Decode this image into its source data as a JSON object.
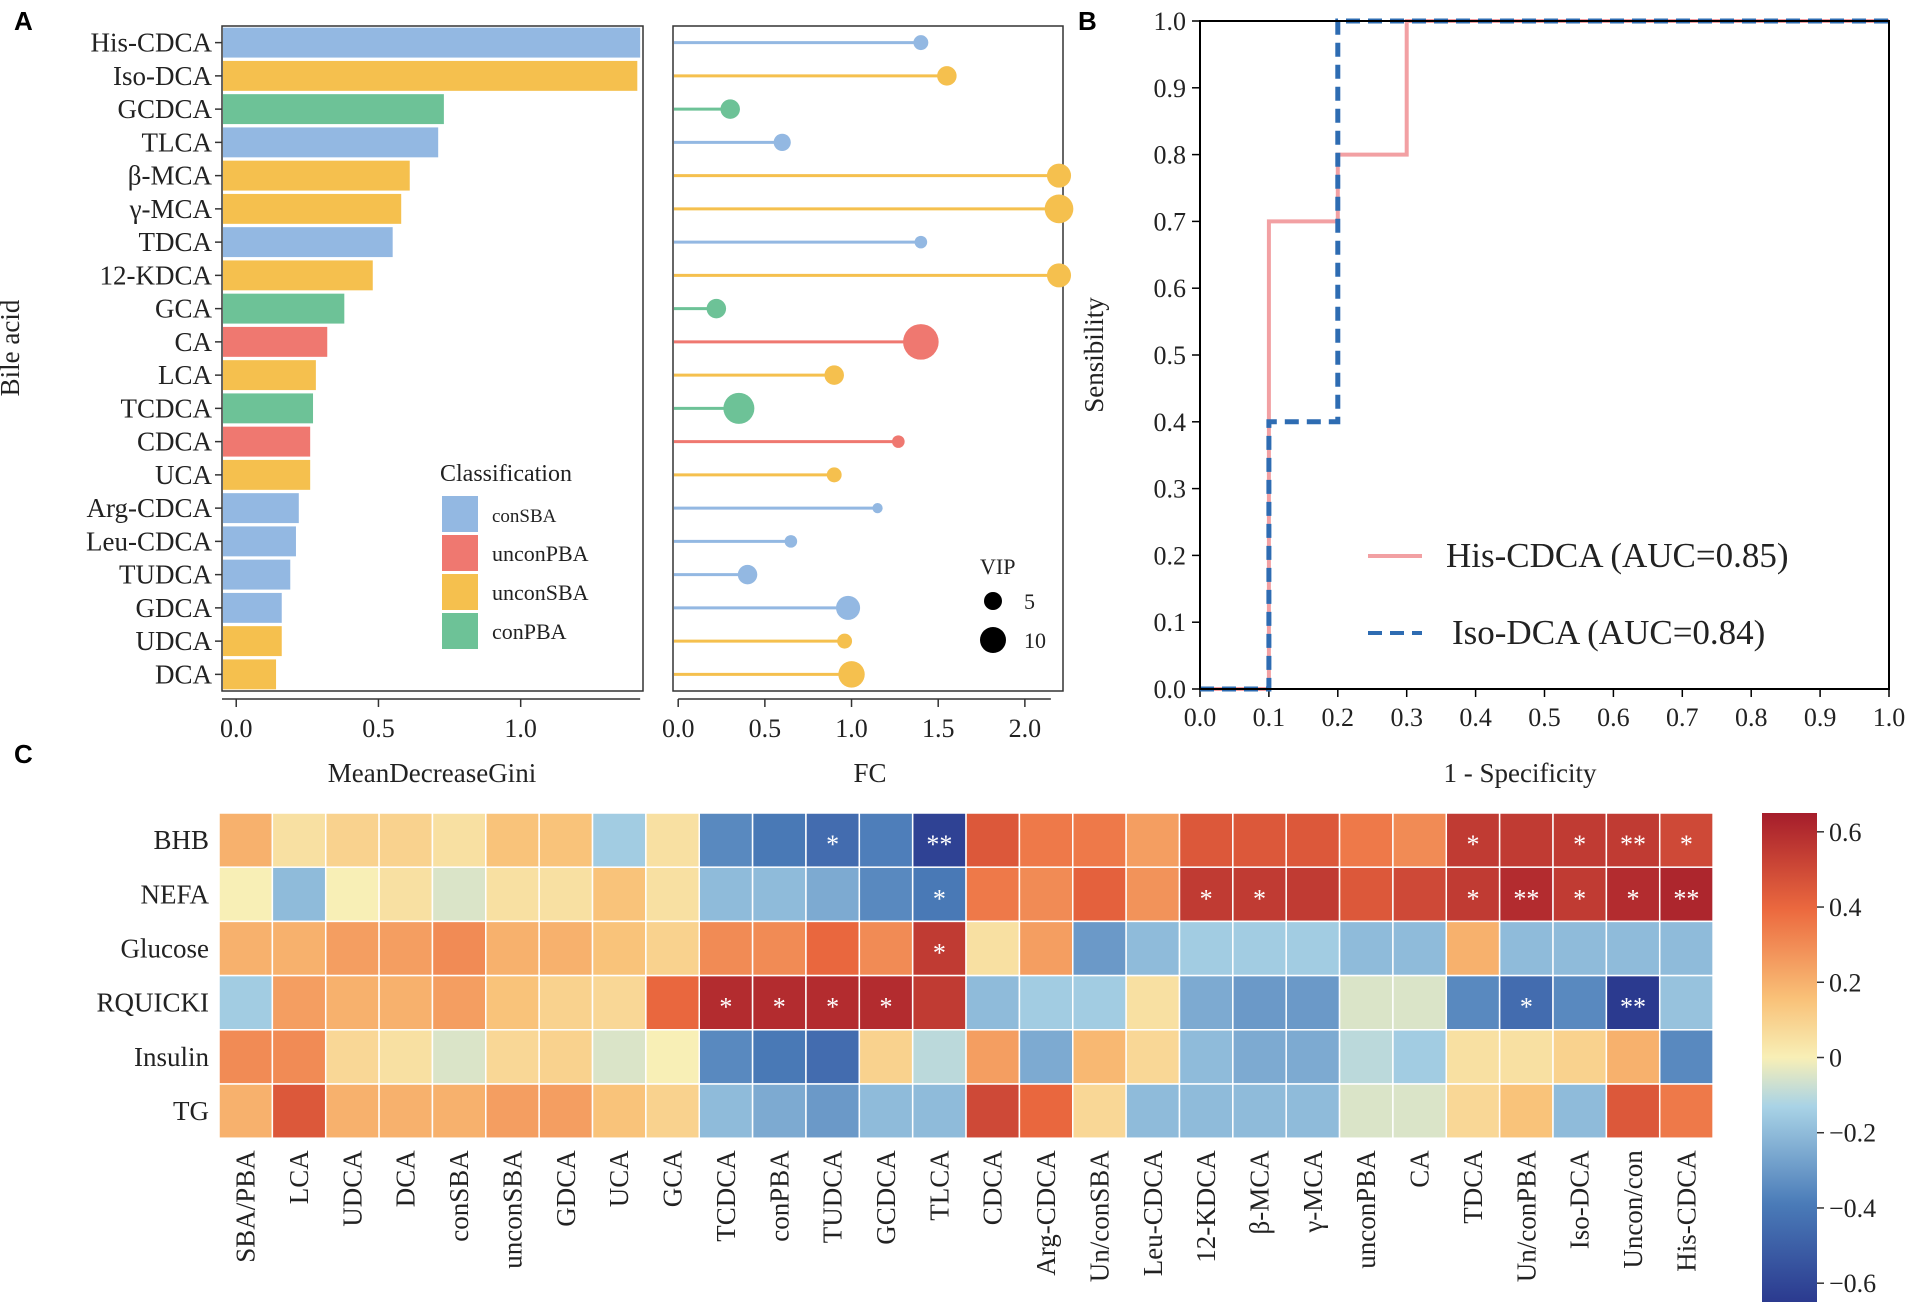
{
  "panel_labels": {
    "a": "A",
    "b": "B",
    "c": "C"
  },
  "colors": {
    "conSBA": "#93b8e2",
    "unconPBA": "#ef7870",
    "unconSBA": "#f5c04e",
    "conPBA": "#6dc297",
    "roc_his": "#f2a0a3",
    "roc_iso": "#2e6cb2"
  },
  "chart_data": [
    {
      "id": "gini",
      "type": "bar",
      "orientation": "horizontal",
      "ylabel": "Bile acid",
      "xlabel": "MeanDecreaseGini",
      "xlim": [
        -0.05,
        1.43
      ],
      "xticks": [
        "0.0",
        "0.5",
        "1.0"
      ],
      "xtick_values": [
        0,
        0.5,
        1.0
      ],
      "categories": [
        "His-CDCA",
        "Iso-DCA",
        "GCDCA",
        "TLCA",
        "β-MCA",
        "γ-MCA",
        "TDCA",
        "12-KDCA",
        "GCA",
        "CA",
        "LCA",
        "TCDCA",
        "CDCA",
        "UCA",
        "Arg-CDCA",
        "Leu-CDCA",
        "TUDCA",
        "GDCA",
        "UDCA",
        "DCA"
      ],
      "values": [
        1.42,
        1.41,
        0.73,
        0.71,
        0.61,
        0.58,
        0.55,
        0.48,
        0.38,
        0.32,
        0.28,
        0.27,
        0.26,
        0.26,
        0.22,
        0.21,
        0.19,
        0.16,
        0.16,
        0.14
      ],
      "classes": [
        "conSBA",
        "unconSBA",
        "conPBA",
        "conSBA",
        "unconSBA",
        "unconSBA",
        "conSBA",
        "unconSBA",
        "conPBA",
        "unconPBA",
        "unconSBA",
        "conPBA",
        "unconPBA",
        "unconSBA",
        "conSBA",
        "conSBA",
        "conSBA",
        "conSBA",
        "unconSBA",
        "unconSBA"
      ],
      "legend": {
        "title": "Classification",
        "items": [
          "conSBA",
          "unconPBA",
          "unconSBA",
          "conPBA"
        ]
      }
    },
    {
      "id": "fc",
      "type": "lollipop",
      "xlabel": "FC",
      "xlim": [
        -0.03,
        2.22
      ],
      "xticks": [
        "0.0",
        "0.5",
        "1.0",
        "1.5",
        "2.0"
      ],
      "xtick_values": [
        0,
        0.5,
        1.0,
        1.5,
        2.0
      ],
      "values": [
        1.4,
        1.55,
        0.3,
        0.6,
        2.22,
        2.2,
        1.4,
        2.22,
        0.22,
        1.4,
        0.9,
        0.35,
        1.27,
        0.9,
        1.15,
        0.65,
        0.4,
        0.98,
        0.96,
        1.0
      ],
      "vip": [
        3,
        5,
        5,
        4,
        7,
        9,
        2,
        7,
        5,
        12,
        5,
        10,
        2,
        3,
        1,
        2,
        5,
        7,
        3,
        8
      ],
      "size_legend": {
        "title": "VIP",
        "labels": [
          "5",
          "10"
        ],
        "values": [
          5,
          10
        ]
      }
    },
    {
      "id": "roc",
      "type": "line",
      "xlabel": "1 - Specificity",
      "ylabel": "Sensibility",
      "xlim": [
        0,
        1
      ],
      "ylim": [
        0,
        1
      ],
      "ticks": [
        "0.0",
        "0.1",
        "0.2",
        "0.3",
        "0.4",
        "0.5",
        "0.6",
        "0.7",
        "0.8",
        "0.9",
        "1.0"
      ],
      "tick_values": [
        0,
        0.1,
        0.2,
        0.3,
        0.4,
        0.5,
        0.6,
        0.7,
        0.8,
        0.9,
        1.0
      ],
      "series": [
        {
          "name": "His-CDCA (AUC=0.85)",
          "style": "solid",
          "x": [
            0,
            0.1,
            0.1,
            0.2,
            0.2,
            0.3,
            0.3,
            1.0
          ],
          "y": [
            0,
            0,
            0.7,
            0.7,
            0.8,
            0.8,
            1.0,
            1.0
          ]
        },
        {
          "name": "Iso-DCA (AUC=0.84)",
          "style": "dashed",
          "x": [
            0,
            0.1,
            0.1,
            0.2,
            0.2,
            1.0
          ],
          "y": [
            0,
            0,
            0.4,
            0.4,
            1.0,
            1.0
          ]
        }
      ]
    },
    {
      "id": "heatmap",
      "type": "heatmap",
      "rows": [
        "BHB",
        "NEFA",
        "Glucose",
        "RQUICKI",
        "Insulin",
        "TG"
      ],
      "cols": [
        "SBA/PBA",
        "LCA",
        "UDCA",
        "DCA",
        "conSBA",
        "unconSBA",
        "GDCA",
        "UCA",
        "GCA",
        "TCDCA",
        "conPBA",
        "TUDCA",
        "GCDCA",
        "TLCA",
        "CDCA",
        "Arg-CDCA",
        "Un/conSBA",
        "Leu-CDCA",
        "12-KDCA",
        "β-MCA",
        "γ-MCA",
        "unconPBA",
        "CA",
        "TDCA",
        "Un/conPBA",
        "Iso-DCA",
        "Uncon/con",
        "His-CDCA"
      ],
      "values": [
        [
          0.2,
          0.05,
          0.1,
          0.1,
          0.05,
          0.15,
          0.15,
          -0.15,
          0.05,
          -0.35,
          -0.4,
          -0.45,
          -0.38,
          -0.62,
          0.45,
          0.35,
          0.35,
          0.25,
          0.45,
          0.45,
          0.45,
          0.35,
          0.3,
          0.55,
          0.55,
          0.55,
          0.55,
          0.5
        ],
        [
          0.0,
          -0.2,
          0.0,
          0.05,
          -0.05,
          0.05,
          0.05,
          0.15,
          0.05,
          -0.2,
          -0.2,
          -0.25,
          -0.35,
          -0.4,
          0.35,
          0.3,
          0.42,
          0.28,
          0.55,
          0.55,
          0.55,
          0.45,
          0.5,
          0.55,
          0.6,
          0.55,
          0.6,
          0.62
        ],
        [
          0.2,
          0.2,
          0.25,
          0.25,
          0.3,
          0.2,
          0.2,
          0.15,
          0.1,
          0.3,
          0.3,
          0.4,
          0.3,
          0.55,
          0.05,
          0.25,
          -0.3,
          -0.2,
          -0.15,
          -0.15,
          -0.15,
          -0.2,
          -0.2,
          0.2,
          -0.2,
          -0.2,
          -0.2,
          -0.2
        ],
        [
          -0.15,
          0.25,
          0.2,
          0.2,
          0.25,
          0.15,
          0.1,
          0.08,
          0.4,
          0.6,
          0.6,
          0.6,
          0.6,
          0.55,
          -0.2,
          -0.15,
          -0.15,
          0.05,
          -0.25,
          -0.3,
          -0.3,
          -0.05,
          -0.05,
          -0.35,
          -0.45,
          -0.35,
          -0.65,
          -0.18
        ],
        [
          0.3,
          0.3,
          0.08,
          0.05,
          -0.05,
          0.08,
          0.1,
          -0.05,
          0.0,
          -0.35,
          -0.4,
          -0.45,
          0.1,
          -0.1,
          0.25,
          -0.25,
          0.18,
          0.08,
          -0.2,
          -0.25,
          -0.25,
          -0.1,
          -0.15,
          0.05,
          0.05,
          0.1,
          0.2,
          -0.35
        ],
        [
          0.2,
          0.45,
          0.2,
          0.2,
          0.2,
          0.25,
          0.25,
          0.15,
          0.1,
          -0.2,
          -0.25,
          -0.3,
          -0.2,
          -0.2,
          0.5,
          0.4,
          0.08,
          -0.2,
          -0.2,
          -0.2,
          -0.2,
          -0.05,
          -0.05,
          0.08,
          0.15,
          -0.2,
          0.45,
          0.35
        ]
      ],
      "annotations": [
        {
          "row": 0,
          "col": 11,
          "text": "*"
        },
        {
          "row": 0,
          "col": 13,
          "text": "**"
        },
        {
          "row": 0,
          "col": 23,
          "text": "*"
        },
        {
          "row": 0,
          "col": 25,
          "text": "*"
        },
        {
          "row": 0,
          "col": 26,
          "text": "**"
        },
        {
          "row": 0,
          "col": 27,
          "text": "*"
        },
        {
          "row": 1,
          "col": 13,
          "text": "*"
        },
        {
          "row": 1,
          "col": 18,
          "text": "*"
        },
        {
          "row": 1,
          "col": 19,
          "text": "*"
        },
        {
          "row": 1,
          "col": 23,
          "text": "*"
        },
        {
          "row": 1,
          "col": 24,
          "text": "**"
        },
        {
          "row": 1,
          "col": 25,
          "text": "*"
        },
        {
          "row": 1,
          "col": 26,
          "text": "*"
        },
        {
          "row": 1,
          "col": 27,
          "text": "**"
        },
        {
          "row": 2,
          "col": 13,
          "text": "*"
        },
        {
          "row": 3,
          "col": 9,
          "text": "*"
        },
        {
          "row": 3,
          "col": 10,
          "text": "*"
        },
        {
          "row": 3,
          "col": 11,
          "text": "*"
        },
        {
          "row": 3,
          "col": 12,
          "text": "*"
        },
        {
          "row": 3,
          "col": 24,
          "text": "*"
        },
        {
          "row": 3,
          "col": 26,
          "text": "**"
        }
      ],
      "colorbar": {
        "min": -0.65,
        "max": 0.65,
        "ticks": [
          "0.6",
          "0.4",
          "0.2",
          "0",
          "−0.2",
          "−0.4",
          "−0.6"
        ],
        "tick_values": [
          0.6,
          0.4,
          0.2,
          0,
          -0.2,
          -0.4,
          -0.6
        ]
      }
    }
  ]
}
